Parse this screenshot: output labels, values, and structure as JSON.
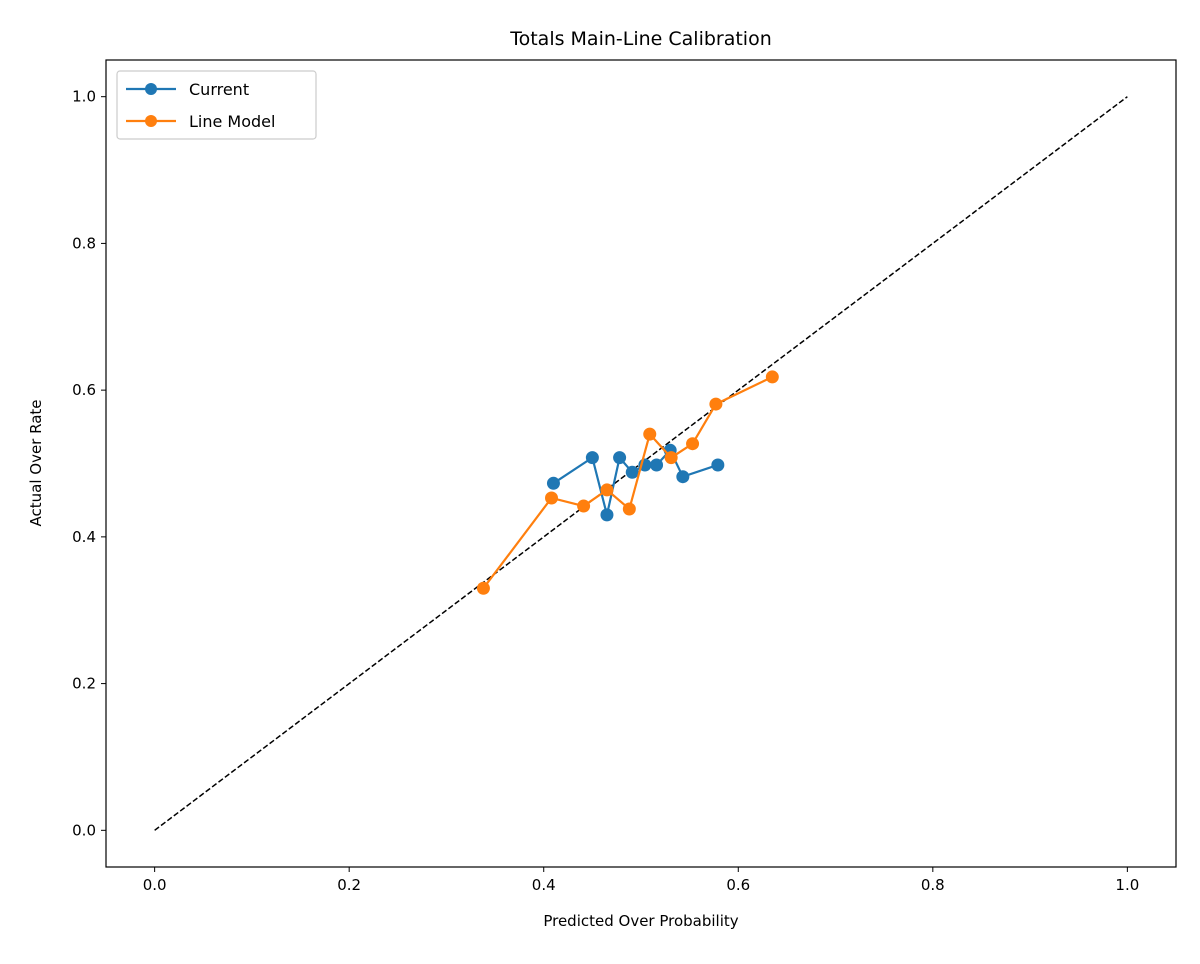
{
  "chart_data": {
    "type": "line",
    "title": "Totals Main-Line Calibration",
    "xlabel": "Predicted Over Probability",
    "ylabel": "Actual Over Rate",
    "xlim": [
      -0.05,
      1.05
    ],
    "ylim": [
      -0.05,
      1.05
    ],
    "xticks": [
      "0.0",
      "0.2",
      "0.4",
      "0.6",
      "0.8",
      "1.0"
    ],
    "yticks": [
      "0.0",
      "0.2",
      "0.4",
      "0.6",
      "0.8",
      "1.0"
    ],
    "grid": false,
    "legend_placement": "top-left",
    "reference_line": {
      "x": [
        0,
        1
      ],
      "y": [
        0,
        1
      ],
      "style": "dashed",
      "color": "#000000"
    },
    "series": [
      {
        "name": "Current",
        "color": "#1f77b4",
        "marker": "circle",
        "x": [
          0.41,
          0.45,
          0.465,
          0.478,
          0.491,
          0.504,
          0.516,
          0.53,
          0.543,
          0.579
        ],
        "y": [
          0.473,
          0.508,
          0.43,
          0.508,
          0.488,
          0.498,
          0.498,
          0.518,
          0.482,
          0.498
        ]
      },
      {
        "name": "Line Model",
        "color": "#ff7f0e",
        "marker": "circle",
        "x": [
          0.338,
          0.408,
          0.441,
          0.465,
          0.488,
          0.509,
          0.531,
          0.553,
          0.577,
          0.635
        ],
        "y": [
          0.33,
          0.453,
          0.442,
          0.464,
          0.438,
          0.54,
          0.508,
          0.527,
          0.581,
          0.618
        ]
      }
    ]
  }
}
